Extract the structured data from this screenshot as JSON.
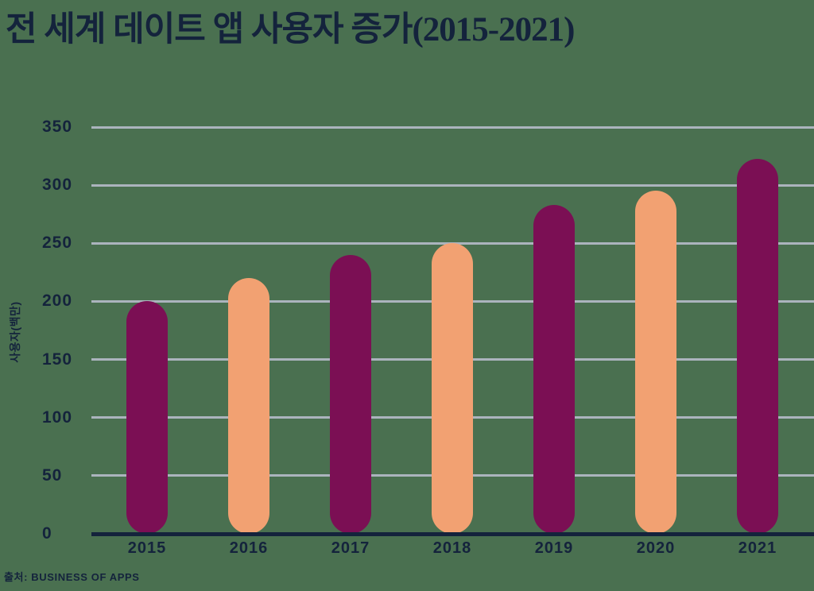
{
  "title": "전 세계 데이트 앱 사용자 증가(2015-2021)",
  "y_axis_label": "사용자(백만)",
  "source": "출처: BUSINESS OF APPS",
  "colors": {
    "background": "#4A7050",
    "bar_dark": "#7B0F54",
    "bar_light": "#F2A172",
    "text": "#14233C",
    "gridline": "#ABB4BD",
    "axis": "#14233C"
  },
  "chart_data": {
    "type": "bar",
    "title": "전 세계 데이트 앱 사용자 증가(2015-2021)",
    "categories": [
      "2015",
      "2016",
      "2017",
      "2018",
      "2019",
      "2020",
      "2021"
    ],
    "values": [
      200,
      220,
      240,
      250,
      283,
      295,
      323
    ],
    "xlabel": "",
    "ylabel": "사용자(백만)",
    "ylim": [
      0,
      350
    ],
    "yticks": [
      0,
      50,
      100,
      150,
      200,
      250,
      300,
      350
    ],
    "grid": true,
    "legend": false,
    "bar_shape": "pill",
    "bar_color_pattern": "alternating",
    "bar_colors": [
      "#7B0F54",
      "#F2A172"
    ],
    "source": "출처: BUSINESS OF APPS"
  }
}
